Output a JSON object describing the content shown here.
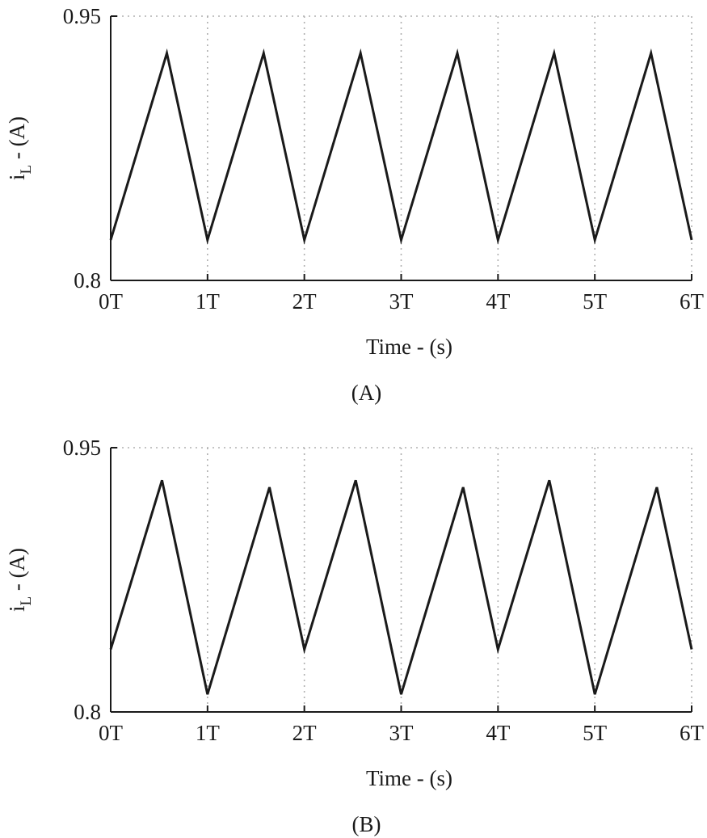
{
  "chart_data": [
    {
      "type": "line",
      "panel_label": "(A)",
      "xlabel": "Time - (s)",
      "ylabel_main": "i",
      "ylabel_sub": "L",
      "ylabel_rest": " - (A)",
      "xlim": [
        0,
        6
      ],
      "ylim": [
        0.8,
        0.95
      ],
      "xticks": [
        0,
        1,
        2,
        3,
        4,
        5,
        6
      ],
      "xtick_labels": [
        "0T",
        "1T",
        "2T",
        "3T",
        "4T",
        "5T",
        "6T"
      ],
      "yticks": [
        0.8,
        0.95
      ],
      "ytick_labels": [
        "0.8",
        "0.95"
      ],
      "grid": true,
      "series": [
        {
          "x": [
            0,
            0.58,
            1,
            1.58,
            2,
            2.58,
            3,
            3.58,
            4,
            4.58,
            5,
            5.58,
            6
          ],
          "y": [
            0.823,
            0.929,
            0.823,
            0.929,
            0.823,
            0.929,
            0.823,
            0.929,
            0.823,
            0.929,
            0.823,
            0.929,
            0.823
          ]
        }
      ]
    },
    {
      "type": "line",
      "panel_label": "(B)",
      "xlabel": "Time - (s)",
      "ylabel_main": "i",
      "ylabel_sub": "L",
      "ylabel_rest": " - (A)",
      "xlim": [
        0,
        6
      ],
      "ylim": [
        0.8,
        0.95
      ],
      "xticks": [
        0,
        1,
        2,
        3,
        4,
        5,
        6
      ],
      "xtick_labels": [
        "0T",
        "1T",
        "2T",
        "3T",
        "4T",
        "5T",
        "6T"
      ],
      "yticks": [
        0.8,
        0.95
      ],
      "ytick_labels": [
        "0.8",
        "0.95"
      ],
      "grid": true,
      "series": [
        {
          "x": [
            0,
            0.53,
            1,
            1.64,
            2,
            2.53,
            3,
            3.64,
            4,
            4.53,
            5,
            5.64,
            6
          ],
          "y": [
            0.8355,
            0.9315,
            0.81,
            0.9275,
            0.8355,
            0.9315,
            0.81,
            0.9275,
            0.8355,
            0.9315,
            0.81,
            0.9275,
            0.8355
          ]
        }
      ]
    }
  ]
}
